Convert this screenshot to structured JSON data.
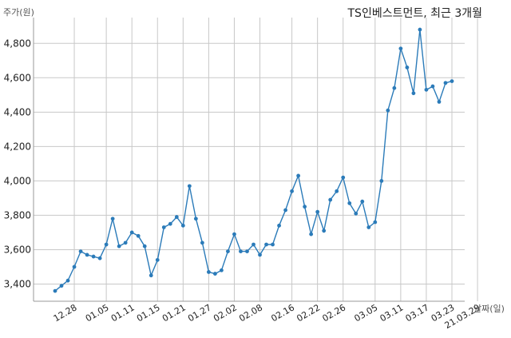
{
  "chart_data": {
    "type": "line",
    "title": "TS인베스트먼트, 최근 3개월",
    "ylabel": "주가(원)",
    "xlabel": "날짜(일)",
    "ylim": [
      3300,
      4950
    ],
    "yticks": [
      3400,
      3600,
      3800,
      4000,
      4200,
      4400,
      4600,
      4800
    ],
    "yticklabels": [
      "3,400",
      "3,600",
      "3,800",
      "4,000",
      "4,200",
      "4,400",
      "4,600",
      "4,800"
    ],
    "x_tick_labels": [
      "12.28",
      "01.05",
      "01.11",
      "01.15",
      "01.21",
      "01.27",
      "02.02",
      "02.08",
      "02.16",
      "02.22",
      "02.26",
      "03.05",
      "03.11",
      "03.17",
      "03.23",
      "21.03.29"
    ],
    "x_tick_positions": [
      3,
      8,
      12,
      16,
      20,
      24,
      28,
      32,
      37,
      41,
      45,
      50,
      54,
      58,
      62,
      66
    ],
    "series": [
      {
        "color": "#2b7bb9",
        "values": [
          3360,
          3390,
          3420,
          3500,
          3590,
          3570,
          3560,
          3550,
          3630,
          3780,
          3620,
          3640,
          3700,
          3680,
          3620,
          3450,
          3540,
          3730,
          3750,
          3790,
          3740,
          3970,
          3780,
          3640,
          3470,
          3460,
          3480,
          3590,
          3690,
          3590,
          3590,
          3630,
          3570,
          3630,
          3630,
          3740,
          3830,
          3940,
          4030,
          3850,
          3690,
          3820,
          3710,
          3890,
          3940,
          4020,
          3870,
          3810,
          3880,
          3730,
          3760,
          4000,
          4410,
          4540,
          4770,
          4660,
          4510,
          4880,
          4530,
          4550,
          4460,
          4570,
          4580
        ]
      }
    ]
  }
}
